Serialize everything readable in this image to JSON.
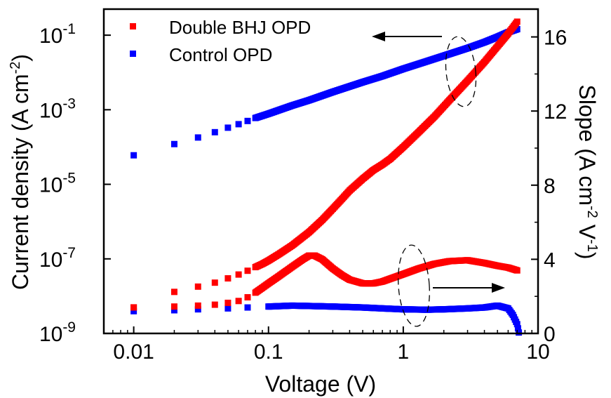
{
  "chart_data": {
    "type": "scatter",
    "x_scale": "log",
    "y_left_scale": "log",
    "y_right_scale": "linear",
    "xlim": [
      0.006,
      10
    ],
    "ylim_left": [
      1e-09,
      0.5
    ],
    "ylim_right": [
      0,
      17.5
    ],
    "x_ticks": [
      {
        "value": 0.01,
        "label": "0.01"
      },
      {
        "value": 0.1,
        "label": "0.1"
      },
      {
        "value": 1,
        "label": "1"
      },
      {
        "value": 10,
        "label": "10"
      }
    ],
    "y_left_ticks": [
      {
        "value": 1e-09,
        "base": "10",
        "exp": "-9"
      },
      {
        "value": 1e-07,
        "base": "10",
        "exp": "-7"
      },
      {
        "value": 1e-05,
        "base": "10",
        "exp": "-5"
      },
      {
        "value": 0.001,
        "base": "10",
        "exp": "-3"
      },
      {
        "value": 0.1,
        "base": "10",
        "exp": "-1"
      }
    ],
    "y_right_ticks": [
      {
        "value": 0,
        "label": "0"
      },
      {
        "value": 4,
        "label": "4"
      },
      {
        "value": 8,
        "label": "8"
      },
      {
        "value": 12,
        "label": "12"
      },
      {
        "value": 16,
        "label": "16"
      }
    ],
    "xlabel": "Voltage (V)",
    "ylabel_left": {
      "text": "Current density (A cm",
      "sup": "-2",
      "end": ")"
    },
    "ylabel_right": {
      "text1": "Slope (A cm",
      "sup1": "-2",
      "text2": " V",
      "sup2": "-1",
      "end": ")"
    },
    "legend": {
      "position": "top-left"
    },
    "series": [
      {
        "name": "Double BHJ OPD",
        "color": "#ff0000",
        "axis": "left",
        "kind": "current",
        "points": [
          [
            0.01,
            5e-09
          ],
          [
            0.02,
            1.3e-08
          ],
          [
            0.03,
            1.8e-08
          ],
          [
            0.04,
            2.3e-08
          ],
          [
            0.05,
            3e-08
          ],
          [
            0.06,
            3.8e-08
          ],
          [
            0.07,
            4.8e-08
          ],
          [
            0.08,
            6e-08
          ],
          [
            0.09,
            7.3e-08
          ],
          [
            0.1,
            9e-08
          ],
          [
            0.12,
            1.35e-07
          ],
          [
            0.15,
            2.3e-07
          ],
          [
            0.2,
            5.2e-07
          ],
          [
            0.25,
            1.1e-06
          ],
          [
            0.3,
            2.2e-06
          ],
          [
            0.35,
            4e-06
          ],
          [
            0.4,
            6.8e-06
          ],
          [
            0.5,
            1.4e-05
          ],
          [
            0.6,
            2.4e-05
          ],
          [
            0.7,
            3.4e-05
          ],
          [
            0.8,
            4.8e-05
          ],
          [
            1.0,
            0.0001
          ],
          [
            1.3,
            0.00025
          ],
          [
            1.7,
            0.00065
          ],
          [
            2.2,
            0.0018
          ],
          [
            3.0,
            0.006
          ],
          [
            4.0,
            0.019
          ],
          [
            5.0,
            0.05
          ],
          [
            6.0,
            0.11
          ],
          [
            7.0,
            0.23
          ]
        ]
      },
      {
        "name": "Control OPD",
        "color": "#0000ff",
        "axis": "left",
        "kind": "current",
        "points": [
          [
            0.01,
            6e-05
          ],
          [
            0.02,
            0.00012
          ],
          [
            0.03,
            0.00018
          ],
          [
            0.04,
            0.00025
          ],
          [
            0.05,
            0.00033
          ],
          [
            0.06,
            0.00041
          ],
          [
            0.07,
            0.0005
          ],
          [
            0.08,
            0.0006
          ],
          [
            0.1,
            0.00078
          ],
          [
            0.15,
            0.0013
          ],
          [
            0.2,
            0.0018
          ],
          [
            0.3,
            0.003
          ],
          [
            0.5,
            0.0055
          ],
          [
            0.7,
            0.008
          ],
          [
            1.0,
            0.0125
          ],
          [
            1.5,
            0.02
          ],
          [
            2.0,
            0.028
          ],
          [
            3.0,
            0.045
          ],
          [
            4.0,
            0.065
          ],
          [
            5.0,
            0.09
          ],
          [
            6.0,
            0.12
          ],
          [
            7.0,
            0.145
          ]
        ]
      },
      {
        "name": "",
        "color": "#ff0000",
        "axis": "right",
        "kind": "slope",
        "points": [
          [
            0.01,
            1.4
          ],
          [
            0.02,
            1.45
          ],
          [
            0.03,
            1.5
          ],
          [
            0.04,
            1.55
          ],
          [
            0.05,
            1.65
          ],
          [
            0.06,
            1.75
          ],
          [
            0.07,
            1.95
          ],
          [
            0.08,
            2.2
          ],
          [
            0.1,
            2.7
          ],
          [
            0.12,
            3.1
          ],
          [
            0.15,
            3.6
          ],
          [
            0.18,
            4.0
          ],
          [
            0.2,
            4.2
          ],
          [
            0.22,
            4.2
          ],
          [
            0.25,
            4.0
          ],
          [
            0.3,
            3.5
          ],
          [
            0.35,
            3.15
          ],
          [
            0.4,
            2.9
          ],
          [
            0.5,
            2.7
          ],
          [
            0.6,
            2.7
          ],
          [
            0.7,
            2.8
          ],
          [
            0.8,
            2.95
          ],
          [
            1.0,
            3.2
          ],
          [
            1.3,
            3.5
          ],
          [
            1.7,
            3.75
          ],
          [
            2.2,
            3.9
          ],
          [
            3.0,
            3.95
          ],
          [
            4.0,
            3.8
          ],
          [
            5.0,
            3.65
          ],
          [
            6.0,
            3.55
          ],
          [
            7.0,
            3.4
          ]
        ]
      },
      {
        "name": "",
        "color": "#0000ff",
        "axis": "right",
        "kind": "slope",
        "points": [
          [
            0.01,
            1.2
          ],
          [
            0.02,
            1.25
          ],
          [
            0.03,
            1.3
          ],
          [
            0.05,
            1.35
          ],
          [
            0.07,
            1.4
          ],
          [
            0.1,
            1.45
          ],
          [
            0.15,
            1.5
          ],
          [
            0.2,
            1.48
          ],
          [
            0.3,
            1.45
          ],
          [
            0.5,
            1.4
          ],
          [
            0.7,
            1.35
          ],
          [
            1.0,
            1.3
          ],
          [
            1.5,
            1.28
          ],
          [
            2.0,
            1.3
          ],
          [
            3.0,
            1.35
          ],
          [
            4.0,
            1.4
          ],
          [
            5.0,
            1.5
          ],
          [
            6.0,
            1.35
          ],
          [
            6.5,
            1.0
          ],
          [
            7.0,
            0.5
          ],
          [
            7.2,
            0.05
          ]
        ]
      }
    ]
  }
}
